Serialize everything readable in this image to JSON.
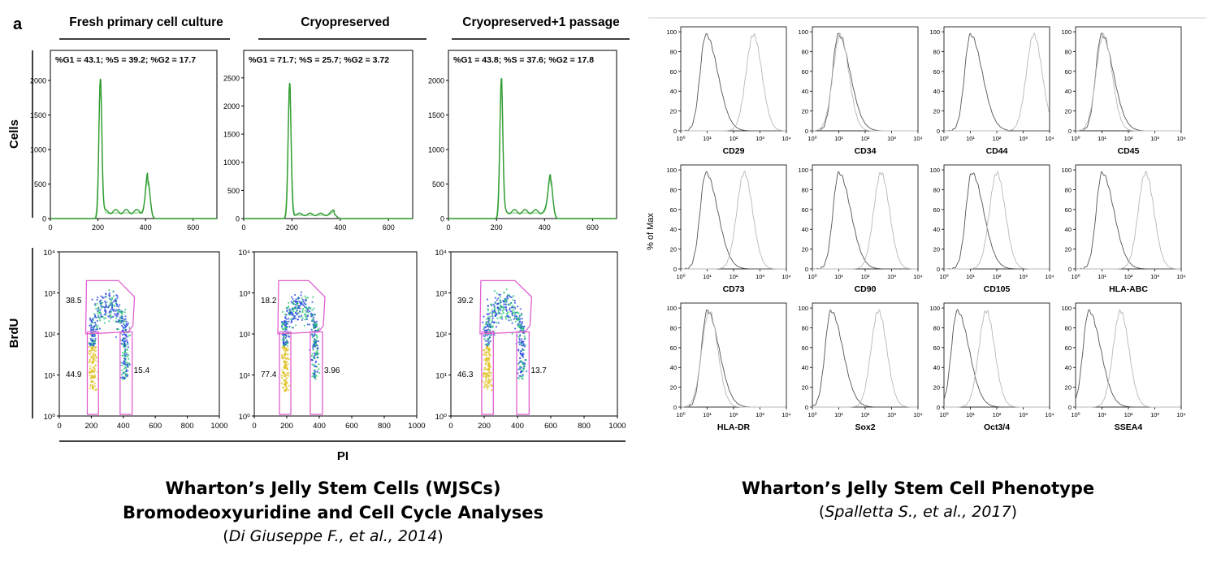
{
  "left_figure": {
    "panel_label": "a",
    "column_titles": [
      "Fresh primary cell culture",
      "Cryopreserved",
      "Cryopreserved+1 passage"
    ],
    "hist_stats": [
      "%G1 = 43.1; %S = 39.2; %G2 = 17.7",
      "%G1 = 71.7; %S = 25.7; %G2 = 3.72",
      "%G1 = 43.8; %S = 37.6; %G2 = 17.8"
    ],
    "row_labels": {
      "hist": "Cells",
      "dot": "BrdU"
    },
    "x_axis_label": "PI",
    "hist_x_ticks": [
      "0",
      "200",
      "400",
      "600"
    ],
    "hist_y_ticks": [
      [
        "0",
        "500",
        "1000",
        "1500",
        "2000"
      ],
      [
        "0",
        "500",
        "1000",
        "1500",
        "2000",
        "2500"
      ],
      [
        "0",
        "500",
        "1000",
        "1500",
        "2000"
      ]
    ],
    "dot_x_ticks": [
      "0",
      "200",
      "400",
      "600",
      "800",
      "1000"
    ],
    "dot_y_ticks": [
      "10⁰",
      "10¹",
      "10²",
      "10³",
      "10⁴"
    ],
    "gate_values": [
      [
        "38.5",
        "44.9",
        "15.4"
      ],
      [
        "18.2",
        "77.4",
        "3.96"
      ],
      [
        "39.2",
        "46.3",
        "13.7"
      ]
    ],
    "colors": {
      "histogram": "#2e9a2e",
      "histogram_fit": "#8fd38f",
      "gate": "#e060d0",
      "scatter": "#2040e0",
      "density": "#20c070"
    }
  },
  "right_figure": {
    "y_axis_label": "% of Max",
    "y_ticks": [
      "0",
      "20",
      "40",
      "60",
      "80",
      "100"
    ],
    "x_ticks": [
      "10⁰",
      "10¹",
      "10²",
      "10³",
      "10⁴"
    ],
    "markers": [
      "CD29",
      "CD34",
      "CD44",
      "CD45",
      "CD73",
      "CD90",
      "CD105",
      "HLA-ABC",
      "HLA-DR",
      "Sox2",
      "Oct3/4",
      "SSEA4"
    ]
  },
  "captions": {
    "left_title_1": "Wharton’s Jelly Stem Cells (WJSCs)",
    "left_title_2": "Bromodeoxyuridine and Cell Cycle Analyses",
    "left_cite_open": "(",
    "left_cite": "Di Giuseppe F., et al., 2014",
    "left_cite_close": ")",
    "right_title": "Wharton’s Jelly Stem Cell Phenotype",
    "right_cite_open": "(",
    "right_cite": "Spalletta S., et al., 2017",
    "right_cite_close": ")"
  }
}
